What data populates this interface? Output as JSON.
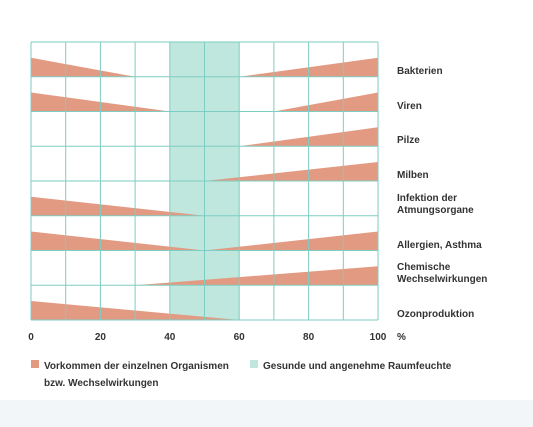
{
  "chart_data": {
    "type": "wedge-range",
    "categories": [
      "Bakterien",
      "Viren",
      "Pilze",
      "Milben",
      "Infektion der\nAtmungsorgane",
      "Allergien, Asthma",
      "Chemische\nWechselwirkungen",
      "Ozonproduktion"
    ],
    "left_end": [
      30,
      40,
      null,
      null,
      50,
      50,
      null,
      60
    ],
    "right_start": [
      60,
      70,
      60,
      50,
      null,
      50,
      30,
      null
    ],
    "zone": [
      40,
      60
    ],
    "xlim": [
      0,
      100
    ],
    "xticks": [
      0,
      20,
      40,
      60,
      80,
      100
    ],
    "x_gridlines": [
      0,
      10,
      20,
      30,
      40,
      50,
      60,
      70,
      80,
      90,
      100
    ],
    "xlabel": "%",
    "wedge_color": "#e39a82",
    "zone_color": "#bfe7de",
    "grid_color": "#7ecdc2",
    "legend": [
      "Vorkommen der einzelnen Organismen\nbzw. Wechselwirkungen",
      "Gesunde und angenehme Raumfeuchte"
    ]
  }
}
